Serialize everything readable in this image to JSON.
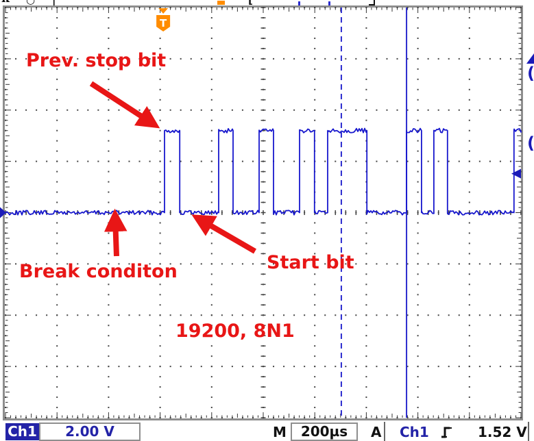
{
  "colors": {
    "annotation_red": "#e81616",
    "waveform_blue": "#1717cd",
    "cursor_blue": "#2a2ace",
    "marker_blue": "#1b1bb8",
    "trigger_orange": "#ff8c00",
    "channel_badge_blue": "#2323a7",
    "grid_dot": "#444444"
  },
  "top_bar": {
    "logo_fragment": "k",
    "ring_fragment": "○",
    "bar_fragment": "|",
    "bracket_fragment": "["
  },
  "annotations": {
    "prev_stop_bit": "Prev. stop bit",
    "break_condition": "Break conditon",
    "start_bit": "Start bit",
    "uart_config": "19200, 8N1"
  },
  "status_bar": {
    "channel": "Ch1",
    "volts_per_div": "2.00 V",
    "timebase_label": "M",
    "timebase": "200µs",
    "trigger_mode_label": "A",
    "trigger_source": "Ch1",
    "trigger_slope_icon": "rising-edge-icon",
    "trigger_level": "1.52 V"
  },
  "chart_data": {
    "type": "line",
    "title": "UART serial line captured on oscilloscope Ch1 showing break condition, 19200 baud 8N1",
    "xlabel": "time, 200µs per division, 10 divisions",
    "ylabel": "voltage, 2.00 V per division, 8 divisions",
    "time_per_div_us": 200,
    "volts_per_div": 2.0,
    "x_range_us": [
      0,
      2000
    ],
    "grid": "dotted graticule, dots every 0.2 division, tick cross-hairs on center axes, ruler ticks on edges",
    "low_v": 0.0,
    "high_v": 3.2,
    "initial_level": "low",
    "transition_times_us": [
      617,
      676,
      827,
      883,
      984,
      1040,
      1141,
      1199,
      1250,
      1402,
      1556,
      1614,
      1662,
      1715,
      1973
    ],
    "cursors_us": {
      "dashed": 1303,
      "solid": 1556
    },
    "trigger": {
      "position_us": 612,
      "level_v": 1.52,
      "marker_label": "T",
      "slope": "rising"
    },
    "channel_marker": {
      "channel": "Ch1",
      "zero_level_v": 0.0
    }
  }
}
